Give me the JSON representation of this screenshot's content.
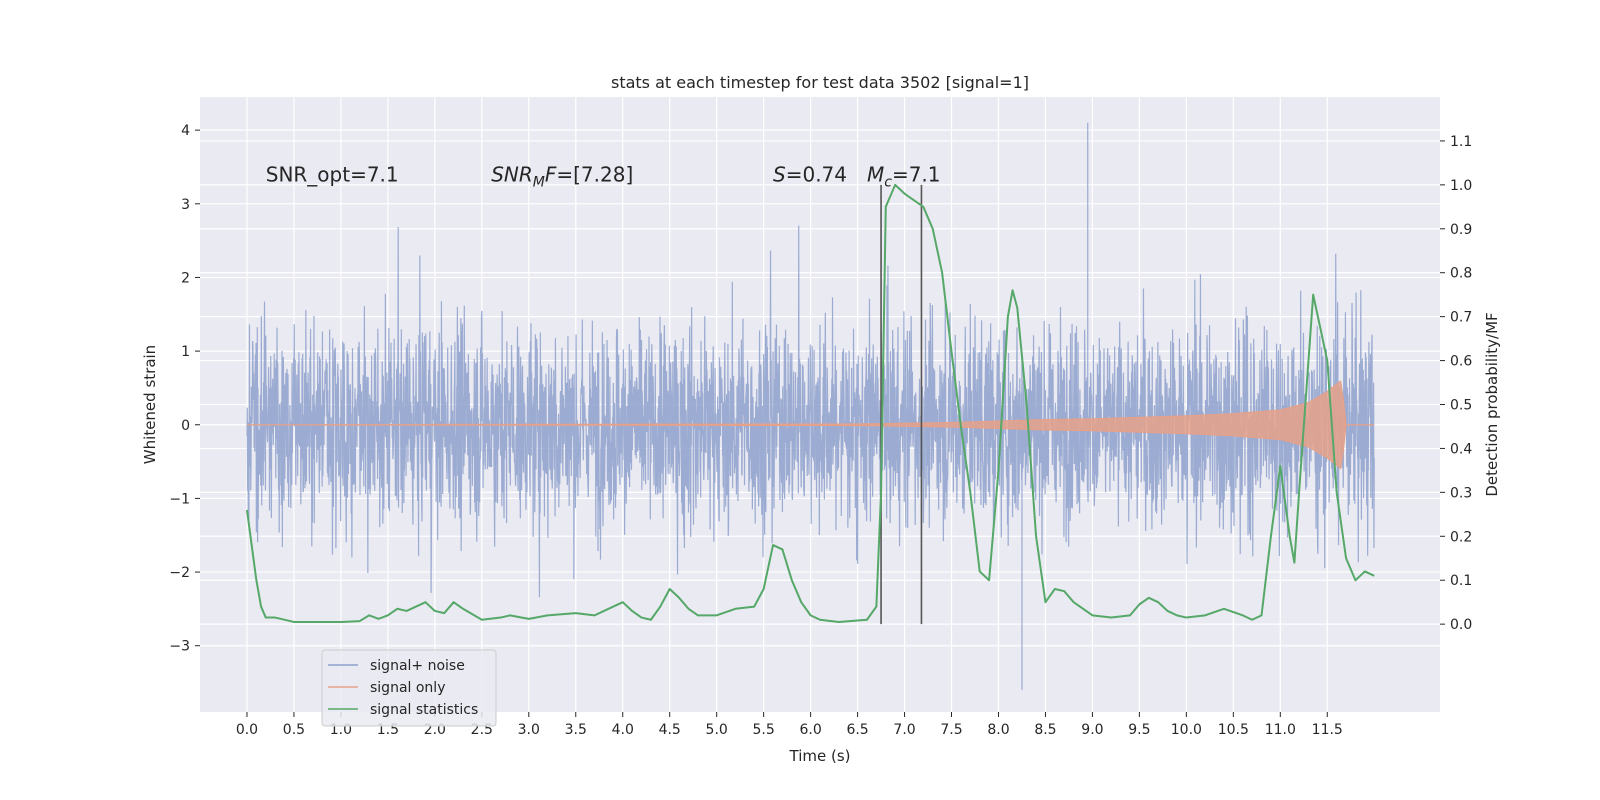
{
  "chart_data": {
    "type": "line",
    "title": "stats at each timestep for test data 3502 [signal=1]",
    "xlabel": "Time (s)",
    "ylabel_left": "Whitened strain",
    "ylabel_right": "Detection probability/MF",
    "xlim": [
      -0.5,
      12.7
    ],
    "ylim_left": [
      -3.9,
      4.45
    ],
    "ylim_right": [
      -0.2,
      1.2
    ],
    "x_ticks": [
      0.0,
      0.5,
      1.0,
      1.5,
      2.0,
      2.5,
      3.0,
      3.5,
      4.0,
      4.5,
      5.0,
      5.5,
      6.0,
      6.5,
      7.0,
      7.5,
      8.0,
      8.5,
      9.0,
      9.5,
      10.0,
      10.5,
      11.0,
      11.5
    ],
    "x_tick_labels": [
      "0.0",
      "0.5",
      "1.0",
      "1.5",
      "2.0",
      "2.5",
      "3.0",
      "3.5",
      "4.0",
      "4.5",
      "5.0",
      "5.5",
      "6.0",
      "6.5",
      "7.0",
      "7.5",
      "8.0",
      "8.5",
      "9.0",
      "9.5",
      "10.0",
      "10.5",
      "11.0",
      "11.5"
    ],
    "y_left_ticks": [
      -3,
      -2,
      -1,
      0,
      1,
      2,
      3,
      4
    ],
    "y_left_tick_labels": [
      "−3",
      "−2",
      "−1",
      "0",
      "1",
      "2",
      "3",
      "4"
    ],
    "y_right_ticks": [
      0.0,
      0.1,
      0.2,
      0.3,
      0.4,
      0.5,
      0.6,
      0.7,
      0.8,
      0.9,
      1.0,
      1.1
    ],
    "y_right_tick_labels": [
      "0.0",
      "0.1",
      "0.2",
      "0.3",
      "0.4",
      "0.5",
      "0.6",
      "0.7",
      "0.8",
      "0.9",
      "1.0",
      "1.1"
    ],
    "grid": true,
    "legend_position": "bottom-left",
    "series": [
      {
        "name": "signal+ noise",
        "axis": "left",
        "color": "#8da0cb",
        "x_range": [
          0.0,
          12.0
        ],
        "envelope_hint": "dense noise, mostly within [-2.5, 2.8], spikes to 4.1 near 8.95 s and -3.6 near 8.25 s"
      },
      {
        "name": "signal only",
        "axis": "left",
        "color": "#e5a18a",
        "x_range": [
          0.0,
          11.7
        ],
        "amplitude": {
          "x": [
            0.0,
            6.5,
            7.0,
            7.5,
            8.0,
            8.5,
            9.0,
            9.5,
            10.0,
            10.5,
            11.0,
            11.3,
            11.5,
            11.6,
            11.65,
            11.7
          ],
          "y": [
            0.0,
            0.01,
            0.02,
            0.03,
            0.05,
            0.07,
            0.08,
            0.1,
            0.12,
            0.15,
            0.2,
            0.3,
            0.45,
            0.55,
            0.6,
            0.0
          ]
        }
      },
      {
        "name": "signal statistics",
        "axis": "right",
        "color": "#55a868",
        "x": [
          0.0,
          0.05,
          0.1,
          0.15,
          0.2,
          0.3,
          0.5,
          0.8,
          1.0,
          1.2,
          1.3,
          1.4,
          1.5,
          1.6,
          1.7,
          1.8,
          1.9,
          2.0,
          2.1,
          2.2,
          2.3,
          2.5,
          2.7,
          2.8,
          3.0,
          3.2,
          3.5,
          3.7,
          3.8,
          3.9,
          4.0,
          4.1,
          4.2,
          4.3,
          4.4,
          4.5,
          4.6,
          4.7,
          4.8,
          5.0,
          5.2,
          5.4,
          5.5,
          5.6,
          5.7,
          5.8,
          5.9,
          6.0,
          6.1,
          6.3,
          6.6,
          6.7,
          6.75,
          6.8,
          6.9,
          7.0,
          7.2,
          7.3,
          7.4,
          7.5,
          7.6,
          7.7,
          7.8,
          7.9,
          8.0,
          8.1,
          8.15,
          8.2,
          8.3,
          8.4,
          8.5,
          8.6,
          8.7,
          8.8,
          9.0,
          9.2,
          9.4,
          9.5,
          9.6,
          9.7,
          9.8,
          9.9,
          10.0,
          10.2,
          10.4,
          10.6,
          10.7,
          10.8,
          10.9,
          11.0,
          11.1,
          11.15,
          11.2,
          11.3,
          11.35,
          11.4,
          11.5,
          11.6,
          11.7,
          11.8,
          11.9,
          12.0
        ],
        "y": [
          0.26,
          0.18,
          0.1,
          0.04,
          0.015,
          0.015,
          0.005,
          0.005,
          0.005,
          0.007,
          0.02,
          0.012,
          0.02,
          0.035,
          0.03,
          0.04,
          0.05,
          0.03,
          0.025,
          0.05,
          0.035,
          0.01,
          0.015,
          0.02,
          0.012,
          0.02,
          0.025,
          0.02,
          0.03,
          0.04,
          0.05,
          0.03,
          0.015,
          0.01,
          0.04,
          0.08,
          0.06,
          0.035,
          0.02,
          0.02,
          0.035,
          0.04,
          0.08,
          0.18,
          0.17,
          0.1,
          0.05,
          0.02,
          0.01,
          0.005,
          0.01,
          0.04,
          0.3,
          0.95,
          1.0,
          0.98,
          0.95,
          0.9,
          0.8,
          0.62,
          0.45,
          0.3,
          0.12,
          0.1,
          0.35,
          0.7,
          0.76,
          0.72,
          0.5,
          0.2,
          0.05,
          0.08,
          0.075,
          0.05,
          0.02,
          0.015,
          0.02,
          0.045,
          0.06,
          0.05,
          0.03,
          0.02,
          0.015,
          0.02,
          0.035,
          0.02,
          0.01,
          0.02,
          0.2,
          0.36,
          0.2,
          0.14,
          0.3,
          0.6,
          0.75,
          0.7,
          0.6,
          0.3,
          0.15,
          0.1,
          0.12,
          0.11
        ]
      }
    ],
    "vertical_lines": [
      6.75,
      7.18
    ],
    "annotations": [
      {
        "id": "snr-opt",
        "x": 0.2,
        "y": 3.3,
        "text": "SNR_opt=7.1"
      },
      {
        "id": "snr-mf",
        "x": 2.6,
        "y": 3.3,
        "text": "=[7.28]",
        "math_base": "SNR",
        "math_sub": "M",
        "math_tail": "F"
      },
      {
        "id": "s-value",
        "x": 5.6,
        "y": 3.3,
        "text": "=0.74",
        "math_base": "S"
      },
      {
        "id": "mc-value",
        "x": 6.6,
        "y": 3.3,
        "text": "=7.1",
        "math_base": "M",
        "math_sub": "c"
      }
    ]
  }
}
